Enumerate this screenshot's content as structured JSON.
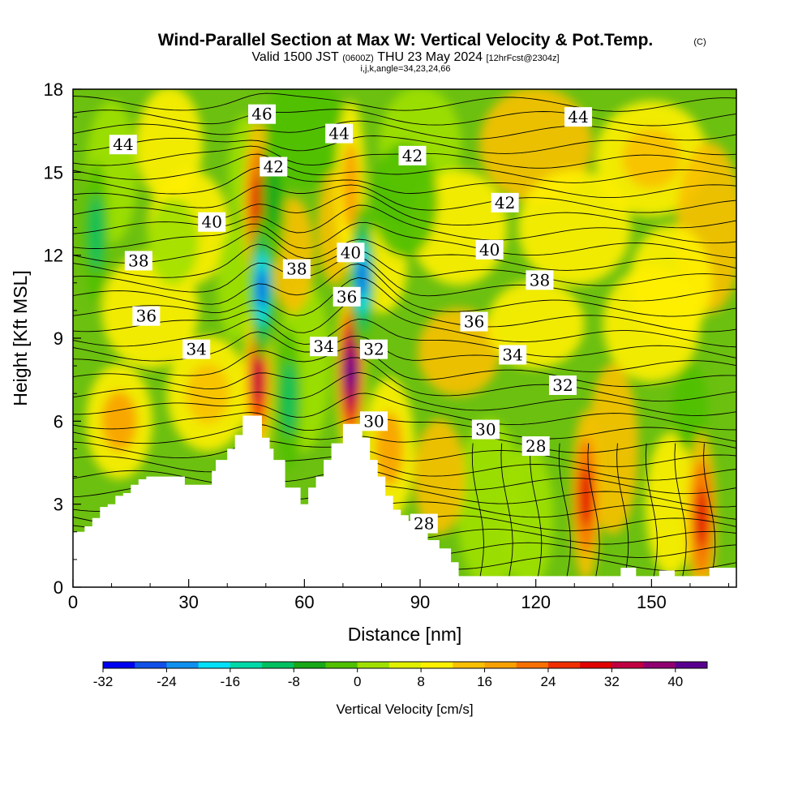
{
  "header": {
    "title": "Wind-Parallel Section at Max W: Vertical Velocity & Pot.Temp.",
    "copyright": "(C)",
    "valid_prefix": "Valid 1500 JST",
    "valid_utc": "(0600Z)",
    "valid_date": "THU 23 May 2024",
    "forecast": "[12hrFcst@2304z]",
    "indices": "i,j,k,angle=34,23,24,66"
  },
  "chart_data": {
    "type": "heatmap",
    "xlabel": "Distance [nm]",
    "ylabel": "Height [Kft MSL]",
    "xlim": [
      0,
      172
    ],
    "ylim": [
      0,
      18
    ],
    "x_ticks": [
      0,
      30,
      60,
      90,
      120,
      150
    ],
    "y_ticks": [
      0,
      3,
      6,
      9,
      12,
      15,
      18
    ],
    "grid": false,
    "colorbar": {
      "title": "Vertical Velocity [cm/s]",
      "tick_labels": [
        "-32",
        "-24",
        "-16",
        "-8",
        "0",
        "8",
        "16",
        "24",
        "32",
        "40"
      ],
      "colors": [
        "#0000f0",
        "#1050e8",
        "#1090ee",
        "#00e0f8",
        "#00d8a8",
        "#00c060",
        "#18a818",
        "#50c000",
        "#a0e000",
        "#e0f000",
        "#fff000",
        "#f8c000",
        "#f8a000",
        "#f87000",
        "#f03000",
        "#e00000",
        "#c00040",
        "#900070",
        "#5a0090"
      ]
    },
    "updraft_cores": [
      {
        "x": 48,
        "z": 7.5,
        "w": 30
      },
      {
        "x": 48,
        "z": 13.8,
        "w": 24
      },
      {
        "x": 72,
        "z": 7.8,
        "w": 42
      },
      {
        "x": 72,
        "z": 14.5,
        "w": 12
      },
      {
        "x": 133,
        "z": 3.3,
        "w": 24
      },
      {
        "x": 163,
        "z": 2.5,
        "w": 24
      }
    ],
    "downdraft_cores": [
      {
        "x": 49,
        "z": 10.8,
        "w": -30
      },
      {
        "x": 75,
        "z": 11.2,
        "w": -30
      },
      {
        "x": 6,
        "z": 12.8,
        "w": -14
      },
      {
        "x": 56,
        "z": 6.8,
        "w": -14
      },
      {
        "x": 52,
        "z": 14.2,
        "w": -12
      }
    ],
    "terrain": {
      "x": [
        0,
        3,
        5,
        7,
        9,
        11,
        13,
        15,
        17,
        19,
        29,
        36,
        37,
        40,
        42,
        44,
        48,
        49,
        51,
        52,
        55,
        59,
        61,
        63,
        65,
        67,
        70,
        75,
        77,
        79,
        81,
        83,
        85,
        87,
        90,
        92,
        95,
        98,
        100,
        120,
        142,
        146,
        152,
        156,
        165,
        172
      ],
      "z": [
        2,
        2.2,
        2.5,
        2.9,
        3.0,
        3.3,
        3.4,
        3.7,
        3.9,
        4.0,
        3.7,
        4.2,
        4.6,
        5.0,
        5.5,
        6.2,
        6.2,
        5.4,
        5.0,
        4.6,
        3.6,
        3.0,
        3.6,
        4.0,
        4.6,
        5.2,
        5.9,
        5.4,
        4.6,
        4.0,
        3.3,
        2.8,
        2.6,
        2.4,
        2.0,
        1.7,
        1.4,
        0.9,
        0.4,
        0.4,
        0.7,
        0.4,
        0.6,
        0.4,
        0.7,
        0.7
      ]
    },
    "contours": {
      "labels": [
        "46",
        "44",
        "44",
        "44",
        "42",
        "42",
        "42",
        "40",
        "40",
        "40",
        "38",
        "38",
        "38",
        "36",
        "36",
        "36",
        "34",
        "34",
        "34",
        "32",
        "32",
        "30",
        "30",
        "28",
        "28"
      ],
      "label_positions": [
        {
          "text": "46",
          "x": 49,
          "z": 17.1
        },
        {
          "text": "44",
          "x": 13,
          "z": 16.0
        },
        {
          "text": "44",
          "x": 69,
          "z": 16.4
        },
        {
          "text": "44",
          "x": 131,
          "z": 17.0
        },
        {
          "text": "42",
          "x": 52,
          "z": 15.2
        },
        {
          "text": "42",
          "x": 88,
          "z": 15.6
        },
        {
          "text": "42",
          "x": 112,
          "z": 13.9
        },
        {
          "text": "40",
          "x": 36,
          "z": 13.2
        },
        {
          "text": "40",
          "x": 72,
          "z": 12.1
        },
        {
          "text": "40",
          "x": 108,
          "z": 12.2
        },
        {
          "text": "38",
          "x": 17,
          "z": 11.8
        },
        {
          "text": "38",
          "x": 58,
          "z": 11.5
        },
        {
          "text": "38",
          "x": 121,
          "z": 11.1
        },
        {
          "text": "36",
          "x": 19,
          "z": 9.8
        },
        {
          "text": "36",
          "x": 71,
          "z": 10.5
        },
        {
          "text": "36",
          "x": 104,
          "z": 9.6
        },
        {
          "text": "34",
          "x": 32,
          "z": 8.6
        },
        {
          "text": "34",
          "x": 65,
          "z": 8.7
        },
        {
          "text": "34",
          "x": 114,
          "z": 8.4
        },
        {
          "text": "32",
          "x": 78,
          "z": 8.6
        },
        {
          "text": "32",
          "x": 127,
          "z": 7.3
        },
        {
          "text": "30",
          "x": 78,
          "z": 6.0
        },
        {
          "text": "30",
          "x": 107,
          "z": 5.7
        },
        {
          "text": "28",
          "x": 120,
          "z": 5.1
        },
        {
          "text": "28",
          "x": 91,
          "z": 2.3
        }
      ]
    }
  }
}
